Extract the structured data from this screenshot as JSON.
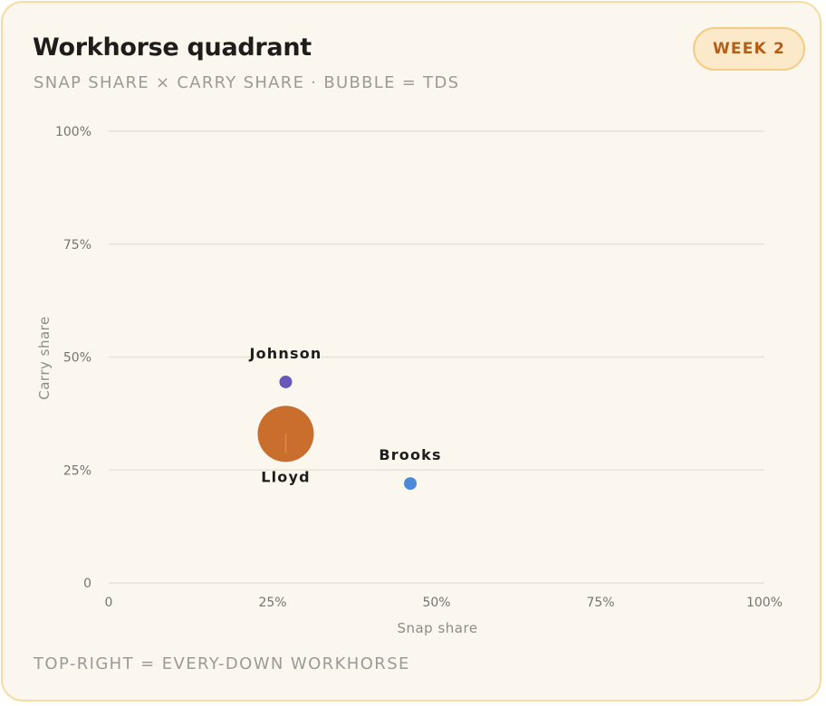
{
  "header": {
    "title": "Workhorse quadrant",
    "subtitle": "SNAP SHARE × CARRY SHARE · BUBBLE = TDS",
    "badge": "WEEK 2"
  },
  "footer": {
    "note": "TOP-RIGHT = EVERY-DOWN WORKHORSE"
  },
  "colors": {
    "background": "#fbf6ee",
    "border": "#f5dca0",
    "badge_text": "#b35e17",
    "grid": "#e8e2d8"
  },
  "chart_data": {
    "type": "scatter",
    "xlabel": "Snap share",
    "ylabel": "Carry share",
    "xlim": [
      0,
      100
    ],
    "ylim": [
      0,
      100
    ],
    "x_ticks": [
      {
        "value": 0,
        "label": "0"
      },
      {
        "value": 25,
        "label": "25%"
      },
      {
        "value": 50,
        "label": "50%"
      },
      {
        "value": 75,
        "label": "75%"
      },
      {
        "value": 100,
        "label": "100%"
      }
    ],
    "y_ticks": [
      {
        "value": 0,
        "label": "0"
      },
      {
        "value": 25,
        "label": "25%"
      },
      {
        "value": 50,
        "label": "50%"
      },
      {
        "value": 75,
        "label": "75%"
      },
      {
        "value": 100,
        "label": "100%"
      }
    ],
    "grid": "horizontal",
    "bubble_size": "TDs",
    "points": [
      {
        "name": "Johnson",
        "x": 27,
        "y": 44.5,
        "tds": 0,
        "color": "#6a55b8",
        "label_position": "above"
      },
      {
        "name": "Lloyd",
        "x": 27,
        "y": 33,
        "tds": 1,
        "color": "#c4621c",
        "label_position": "below"
      },
      {
        "name": "Brooks",
        "x": 46,
        "y": 22,
        "tds": 0,
        "color": "#4a8ad8",
        "label_position": "above"
      }
    ]
  }
}
